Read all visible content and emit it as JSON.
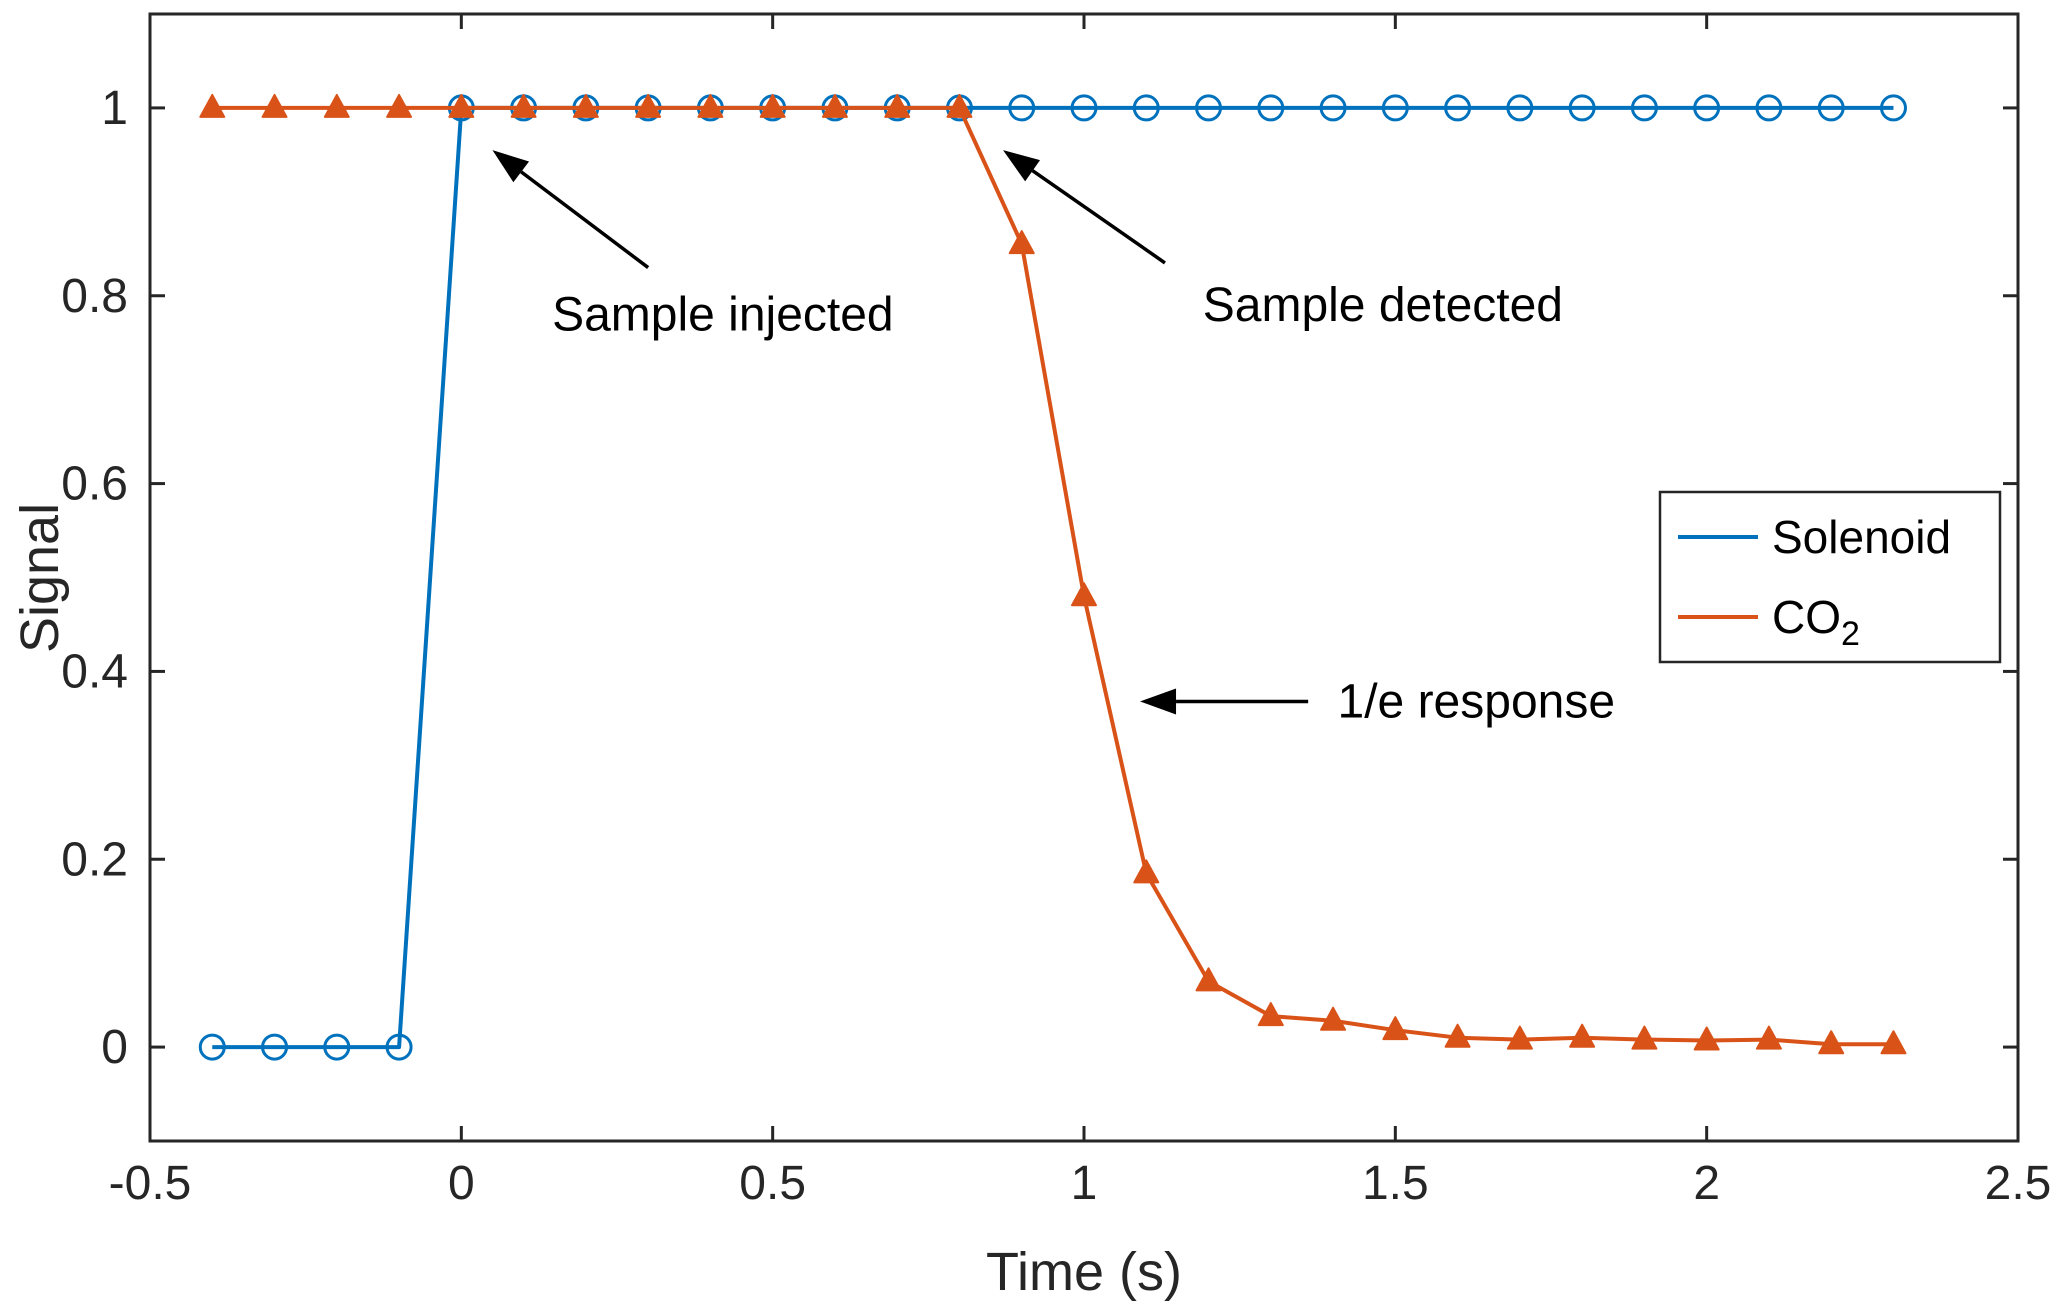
{
  "figure": {
    "background": "#ffffff"
  },
  "chart_data": {
    "type": "line",
    "title": "",
    "xlabel": "Time (s)",
    "ylabel": "Signal",
    "xlim": [
      -0.5,
      2.5
    ],
    "ylim": [
      -0.1,
      1.1
    ],
    "grid": false,
    "axis_color": "#262626",
    "annotation_color": "#000000",
    "legend_position": "right-center",
    "xticks": [
      -0.5,
      0,
      0.5,
      1,
      1.5,
      2,
      2.5
    ],
    "xtick_labels": [
      "-0.5",
      "0",
      "0.5",
      "1",
      "1.5",
      "2",
      "2.5"
    ],
    "yticks": [
      0,
      0.2,
      0.4,
      0.6,
      0.8,
      1
    ],
    "ytick_labels": [
      "0",
      "0.2",
      "0.4",
      "0.6",
      "0.8",
      "1"
    ],
    "x": [
      -0.4,
      -0.3,
      -0.2,
      -0.1,
      0,
      0.1,
      0.2,
      0.3,
      0.4,
      0.5,
      0.6,
      0.7,
      0.8,
      0.9,
      1,
      1.1,
      1.2,
      1.3,
      1.4,
      1.5,
      1.6,
      1.7,
      1.8,
      1.9,
      2,
      2.1,
      2.2,
      2.3
    ],
    "series": [
      {
        "name": "Solenoid",
        "color": "#0072BD",
        "marker": "circle",
        "marker_filled": false,
        "legend": {
          "text": "Solenoid",
          "sub": ""
        },
        "values": [
          0,
          0,
          0,
          0,
          1,
          1,
          1,
          1,
          1,
          1,
          1,
          1,
          1,
          1,
          1,
          1,
          1,
          1,
          1,
          1,
          1,
          1,
          1,
          1,
          1,
          1,
          1,
          1
        ]
      },
      {
        "name": "CO2",
        "color": "#D95319",
        "marker": "triangle",
        "marker_filled": true,
        "legend": {
          "text": "CO",
          "sub": "2"
        },
        "values": [
          1,
          1,
          1,
          1,
          1,
          1,
          1,
          1,
          1,
          1,
          1,
          1,
          1,
          0.855,
          0.48,
          0.185,
          0.07,
          0.033,
          0.028,
          0.018,
          0.01,
          0.008,
          0.01,
          0.008,
          0.007,
          0.008,
          0.003,
          0.003
        ]
      }
    ],
    "annotations": [
      {
        "text": "Sample injected",
        "text_x": 0.42,
        "text_y": 0.78,
        "from_x": 0.3,
        "from_y": 0.83,
        "to_x": 0.05,
        "to_y": 0.955
      },
      {
        "text": "Sample detected",
        "text_x": 1.48,
        "text_y": 0.79,
        "from_x": 1.13,
        "from_y": 0.835,
        "to_x": 0.87,
        "to_y": 0.955
      },
      {
        "text": "1/e response",
        "text_x": 1.63,
        "text_y": 0.368,
        "from_x": 1.36,
        "from_y": 0.368,
        "to_x": 1.09,
        "to_y": 0.368
      }
    ]
  }
}
